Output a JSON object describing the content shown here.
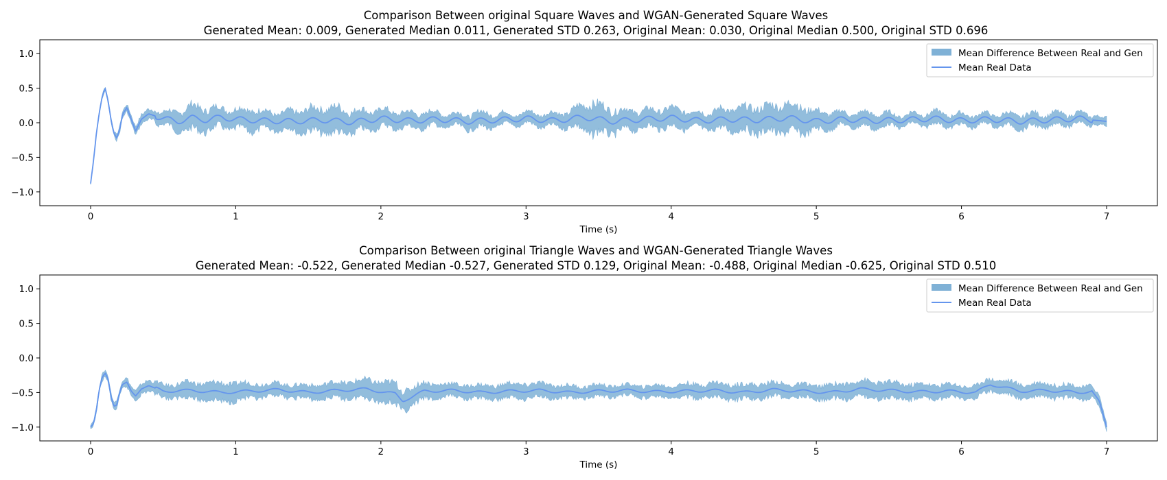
{
  "chart_data": [
    {
      "type": "area",
      "title": "Comparison Between original Square Waves and WGAN-Generated Square Waves",
      "subtitle": "Generated Mean: 0.009, Generated Median 0.011, Generated STD 0.263, Original Mean: 0.030, Original Median 0.500, Original STD 0.696",
      "xlabel": "Time (s)",
      "ylabel": "",
      "xlim": [
        -0.35,
        7.35
      ],
      "ylim": [
        -1.2,
        1.2
      ],
      "xticks": [
        0,
        1,
        2,
        3,
        4,
        5,
        6,
        7
      ],
      "yticks": [
        -1.0,
        -0.5,
        0.0,
        0.5,
        1.0
      ],
      "grid": false,
      "legend_position": "top-right",
      "legend": [
        "Mean Difference Between Real and Gen",
        "Mean Real Data"
      ],
      "series": [
        {
          "name": "Mean Real Data",
          "kind": "line",
          "x": [
            0,
            0.02,
            0.04,
            0.06,
            0.08,
            0.1,
            0.12,
            0.14,
            0.16,
            0.18,
            0.2,
            0.22,
            0.25,
            0.28,
            0.31,
            0.35,
            0.4,
            0.5,
            0.6,
            0.7,
            0.8,
            0.9,
            1.0,
            1.2,
            1.4,
            1.6,
            1.8,
            2.0,
            2.2,
            2.4,
            2.6,
            2.8,
            3.0,
            3.2,
            3.4,
            3.6,
            3.8,
            4.0,
            4.2,
            4.4,
            4.6,
            4.8,
            5.0,
            5.2,
            5.4,
            5.6,
            5.8,
            6.0,
            6.2,
            6.4,
            6.6,
            6.8,
            7.0
          ],
          "y": [
            -0.88,
            -0.55,
            -0.15,
            0.15,
            0.38,
            0.5,
            0.32,
            0.05,
            -0.15,
            -0.22,
            -0.1,
            0.12,
            0.22,
            0.05,
            -0.12,
            0.05,
            0.13,
            0.06,
            0.02,
            0.07,
            0.04,
            0.08,
            0.05,
            0.03,
            0.02,
            0.04,
            0.01,
            0.06,
            0.03,
            0.05,
            0.02,
            0.04,
            0.06,
            0.03,
            0.08,
            0.02,
            0.05,
            0.07,
            0.03,
            0.05,
            0.04,
            0.07,
            0.02,
            0.05,
            0.03,
            0.04,
            0.06,
            0.03,
            0.05,
            0.02,
            0.04,
            0.06,
            0.02
          ]
        },
        {
          "name": "Mean Difference Between Real and Gen",
          "kind": "band",
          "x": [
            0,
            0.5,
            0.7,
            0.9,
            1.1,
            1.3,
            1.5,
            1.7,
            1.9,
            2.1,
            2.3,
            2.5,
            2.7,
            2.9,
            3.1,
            3.3,
            3.45,
            3.6,
            3.8,
            4.0,
            4.2,
            4.4,
            4.6,
            4.85,
            5.0,
            5.2,
            5.4,
            5.6,
            5.8,
            6.0,
            6.2,
            6.4,
            6.6,
            6.8,
            7.0
          ],
          "half_width": [
            0.02,
            0.12,
            0.24,
            0.18,
            0.2,
            0.15,
            0.22,
            0.25,
            0.18,
            0.15,
            0.14,
            0.12,
            0.15,
            0.1,
            0.12,
            0.14,
            0.3,
            0.22,
            0.16,
            0.18,
            0.15,
            0.2,
            0.24,
            0.28,
            0.18,
            0.12,
            0.14,
            0.1,
            0.12,
            0.11,
            0.1,
            0.13,
            0.12,
            0.1,
            0.08
          ]
        }
      ]
    },
    {
      "type": "area",
      "title": "Comparison Between original Triangle Waves and WGAN-Generated Triangle Waves",
      "subtitle": "Generated Mean: -0.522, Generated Median -0.527, Generated STD 0.129, Original Mean: -0.488, Original Median -0.625, Original STD 0.510",
      "xlabel": "Time (s)",
      "ylabel": "",
      "xlim": [
        -0.35,
        7.35
      ],
      "ylim": [
        -1.2,
        1.2
      ],
      "xticks": [
        0,
        1,
        2,
        3,
        4,
        5,
        6,
        7
      ],
      "yticks": [
        -1.0,
        -0.5,
        0.0,
        0.5,
        1.0
      ],
      "grid": false,
      "legend_position": "top-right",
      "legend": [
        "Mean Difference Between Real and Gen",
        "Mean Real Data"
      ],
      "series": [
        {
          "name": "Mean Real Data",
          "kind": "line",
          "x": [
            0,
            0.02,
            0.04,
            0.06,
            0.08,
            0.1,
            0.12,
            0.14,
            0.16,
            0.18,
            0.2,
            0.22,
            0.25,
            0.28,
            0.31,
            0.35,
            0.4,
            0.5,
            0.7,
            0.9,
            1.1,
            1.3,
            1.5,
            1.7,
            1.9,
            2.1,
            2.15,
            2.3,
            2.5,
            2.7,
            2.9,
            3.1,
            3.3,
            3.5,
            3.7,
            3.9,
            4.1,
            4.3,
            4.5,
            4.7,
            4.9,
            5.1,
            5.3,
            5.5,
            5.7,
            5.9,
            6.1,
            6.2,
            6.4,
            6.6,
            6.8,
            6.9,
            6.95,
            7.0
          ],
          "y": [
            -1.0,
            -0.95,
            -0.75,
            -0.45,
            -0.28,
            -0.22,
            -0.3,
            -0.55,
            -0.7,
            -0.68,
            -0.5,
            -0.38,
            -0.35,
            -0.48,
            -0.55,
            -0.45,
            -0.4,
            -0.48,
            -0.47,
            -0.5,
            -0.48,
            -0.46,
            -0.5,
            -0.47,
            -0.45,
            -0.52,
            -0.62,
            -0.48,
            -0.47,
            -0.5,
            -0.48,
            -0.47,
            -0.5,
            -0.48,
            -0.47,
            -0.49,
            -0.48,
            -0.47,
            -0.5,
            -0.46,
            -0.48,
            -0.5,
            -0.45,
            -0.47,
            -0.49,
            -0.48,
            -0.5,
            -0.38,
            -0.48,
            -0.47,
            -0.5,
            -0.48,
            -0.62,
            -1.0
          ]
        },
        {
          "name": "Mean Difference Between Real and Gen",
          "kind": "band",
          "x": [
            0,
            0.5,
            0.9,
            1.3,
            1.7,
            2.1,
            2.5,
            2.9,
            3.3,
            3.7,
            4.1,
            4.5,
            4.9,
            5.3,
            5.7,
            6.1,
            6.5,
            6.9,
            7.0
          ],
          "half_width": [
            0.05,
            0.12,
            0.18,
            0.12,
            0.15,
            0.2,
            0.12,
            0.14,
            0.12,
            0.1,
            0.13,
            0.15,
            0.12,
            0.16,
            0.14,
            0.12,
            0.14,
            0.12,
            0.08
          ]
        }
      ]
    }
  ],
  "colors": {
    "band": "#7fb1d6",
    "line": "#6495ed",
    "axis": "#000000",
    "legend_border": "#cccccc"
  }
}
